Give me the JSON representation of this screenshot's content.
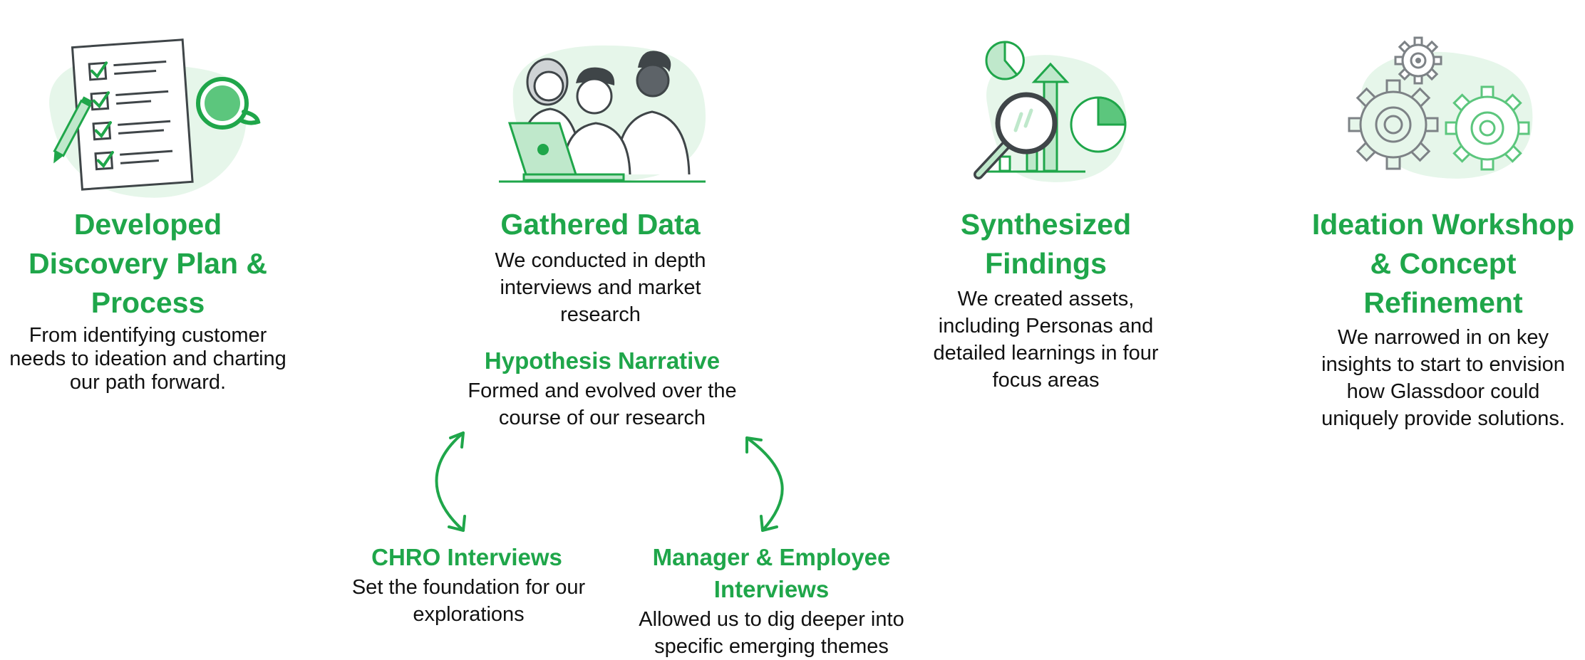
{
  "colors": {
    "accent": "#1fa64a",
    "blob": "#e6f6ea",
    "ink": "#3f4548",
    "text": "#111111"
  },
  "steps": [
    {
      "icon": "checklist-icon",
      "title": "Developed Discovery Plan & Process",
      "description": "From identifying customer needs to ideation and charting our path forward."
    },
    {
      "icon": "team-laptop-icon",
      "title": "Gathered Data",
      "description": "We conducted in depth interviews and market research"
    },
    {
      "icon": "analytics-magnifier-icon",
      "title": "Synthesized Findings",
      "description": "We created assets, including Personas and detailed learnings in four focus areas"
    },
    {
      "icon": "gears-icon",
      "title": "Ideation Workshop & Concept Refinement",
      "description": "We narrowed in on key insights to start to envision how Glassdoor could uniquely provide solutions."
    }
  ],
  "hypothesis": {
    "title": "Hypothesis Narrative",
    "description": "Formed and evolved over the course of our research"
  },
  "chro": {
    "title": "CHRO Interviews",
    "description": "Set the foundation for our explorations"
  },
  "manager": {
    "title": "Manager & Employee Interviews",
    "description": "Allowed us to dig deeper into specific emerging themes"
  }
}
